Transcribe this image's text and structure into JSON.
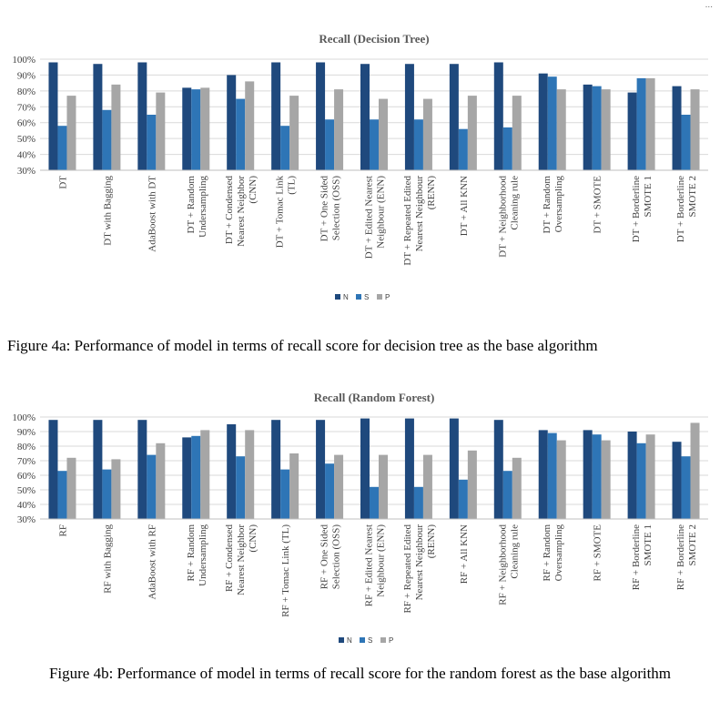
{
  "corner_mark": "...",
  "colors": {
    "N": "#1f497d",
    "S": "#2e75b6",
    "P": "#a6a6a6",
    "grid": "#d9d9d9",
    "axis": "#bfbfbf"
  },
  "captions": {
    "a": "Figure 4a: Performance of model in terms of recall score for decision tree as the base algorithm",
    "b": "Figure 4b: Performance of model in terms of recall score for the random forest as the base algorithm"
  },
  "chart_data": [
    {
      "type": "bar",
      "title": "Recall (Decision Tree)",
      "xlabel": "",
      "ylabel": "",
      "ylim": [
        0.3,
        1.0
      ],
      "yticks": [
        "30%",
        "40%",
        "50%",
        "60%",
        "70%",
        "80%",
        "90%",
        "100%"
      ],
      "grid": true,
      "legend_position": "bottom",
      "categories": [
        [
          "DT"
        ],
        [
          "DT with Bagging"
        ],
        [
          "AdaBoost with DT"
        ],
        [
          "DT + Random",
          "Undersampling"
        ],
        [
          "DT + Condensed",
          "Nearest Neighbor",
          "(CNN)"
        ],
        [
          "DT + Tomac Link",
          "(TL)"
        ],
        [
          "DT + One Sided",
          "Selection (OSS)"
        ],
        [
          "DT + Edited Nearest",
          "Neighbour (ENN)"
        ],
        [
          "DT + Repeated Edited",
          "Nearest Neighbour",
          "(RENN)"
        ],
        [
          "DT + All KNN"
        ],
        [
          "DT + Neighborhood",
          "Cleaning rule"
        ],
        [
          "DT + Random",
          "Oversampling"
        ],
        [
          "DT + SMOTE"
        ],
        [
          "DT + Borderline",
          "SMOTE 1"
        ],
        [
          "DT + Borderline",
          "SMOTE 2"
        ]
      ],
      "series": [
        {
          "name": "N",
          "values": [
            0.98,
            0.97,
            0.98,
            0.82,
            0.9,
            0.98,
            0.98,
            0.97,
            0.97,
            0.97,
            0.98,
            0.91,
            0.84,
            0.79,
            0.83
          ]
        },
        {
          "name": "S",
          "values": [
            0.58,
            0.68,
            0.65,
            0.81,
            0.75,
            0.58,
            0.62,
            0.62,
            0.62,
            0.56,
            0.57,
            0.89,
            0.83,
            0.88,
            0.65
          ]
        },
        {
          "name": "P",
          "values": [
            0.77,
            0.84,
            0.79,
            0.82,
            0.86,
            0.77,
            0.81,
            0.75,
            0.75,
            0.77,
            0.77,
            0.81,
            0.81,
            0.88,
            0.81
          ]
        }
      ]
    },
    {
      "type": "bar",
      "title": "Recall (Random Forest)",
      "xlabel": "",
      "ylabel": "",
      "ylim": [
        0.3,
        1.0
      ],
      "yticks": [
        "30%",
        "40%",
        "50%",
        "60%",
        "70%",
        "80%",
        "90%",
        "100%"
      ],
      "grid": true,
      "legend_position": "bottom",
      "categories": [
        [
          "RF"
        ],
        [
          "RF with Bagging"
        ],
        [
          "AdaBoost with RF"
        ],
        [
          "RF + Random",
          "Undersampling"
        ],
        [
          "RF + Condensed",
          "Nearest Neighbor",
          "(CNN)"
        ],
        [
          "RF + Tomac Link (TL)"
        ],
        [
          "RF + One Sided",
          "Selection (OSS)"
        ],
        [
          "RF + Edited Nearest",
          "Neighbour (ENN)"
        ],
        [
          "RF + Repeated Edited",
          "Nearest Neighbour",
          "(RENN)"
        ],
        [
          "RF + All KNN"
        ],
        [
          "RF + Neighborhood",
          "Cleaning rule"
        ],
        [
          "RF + Random",
          "Oversampling"
        ],
        [
          "RF + SMOTE"
        ],
        [
          "RF + Borderline",
          "SMOTE 1"
        ],
        [
          "RF + Borderline",
          "SMOTE 2"
        ]
      ],
      "series": [
        {
          "name": "N",
          "values": [
            0.98,
            0.98,
            0.98,
            0.86,
            0.95,
            0.98,
            0.98,
            0.99,
            0.99,
            0.99,
            0.98,
            0.91,
            0.91,
            0.9,
            0.83
          ]
        },
        {
          "name": "S",
          "values": [
            0.63,
            0.64,
            0.74,
            0.87,
            0.73,
            0.64,
            0.68,
            0.52,
            0.52,
            0.57,
            0.63,
            0.89,
            0.88,
            0.82,
            0.73
          ]
        },
        {
          "name": "P",
          "values": [
            0.72,
            0.71,
            0.82,
            0.91,
            0.91,
            0.75,
            0.74,
            0.74,
            0.74,
            0.77,
            0.72,
            0.84,
            0.84,
            0.88,
            0.96
          ]
        }
      ]
    }
  ]
}
